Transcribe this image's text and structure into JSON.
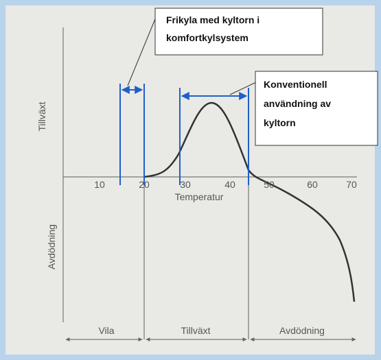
{
  "callouts": [
    {
      "lines": [
        "Frikyla med kyltorn i",
        "komfortkylsystem"
      ]
    },
    {
      "lines": [
        "Konventionell",
        "användning av",
        "kyltorn"
      ]
    }
  ],
  "axes": {
    "y_labels": [
      "Tillväxt",
      "Avdödning"
    ],
    "x_label": "Temperatur",
    "x_ticks": [
      10,
      20,
      30,
      40,
      50,
      60,
      70
    ]
  },
  "zones": [
    "Vila",
    "Tillväxt",
    "Avdödning"
  ]
}
